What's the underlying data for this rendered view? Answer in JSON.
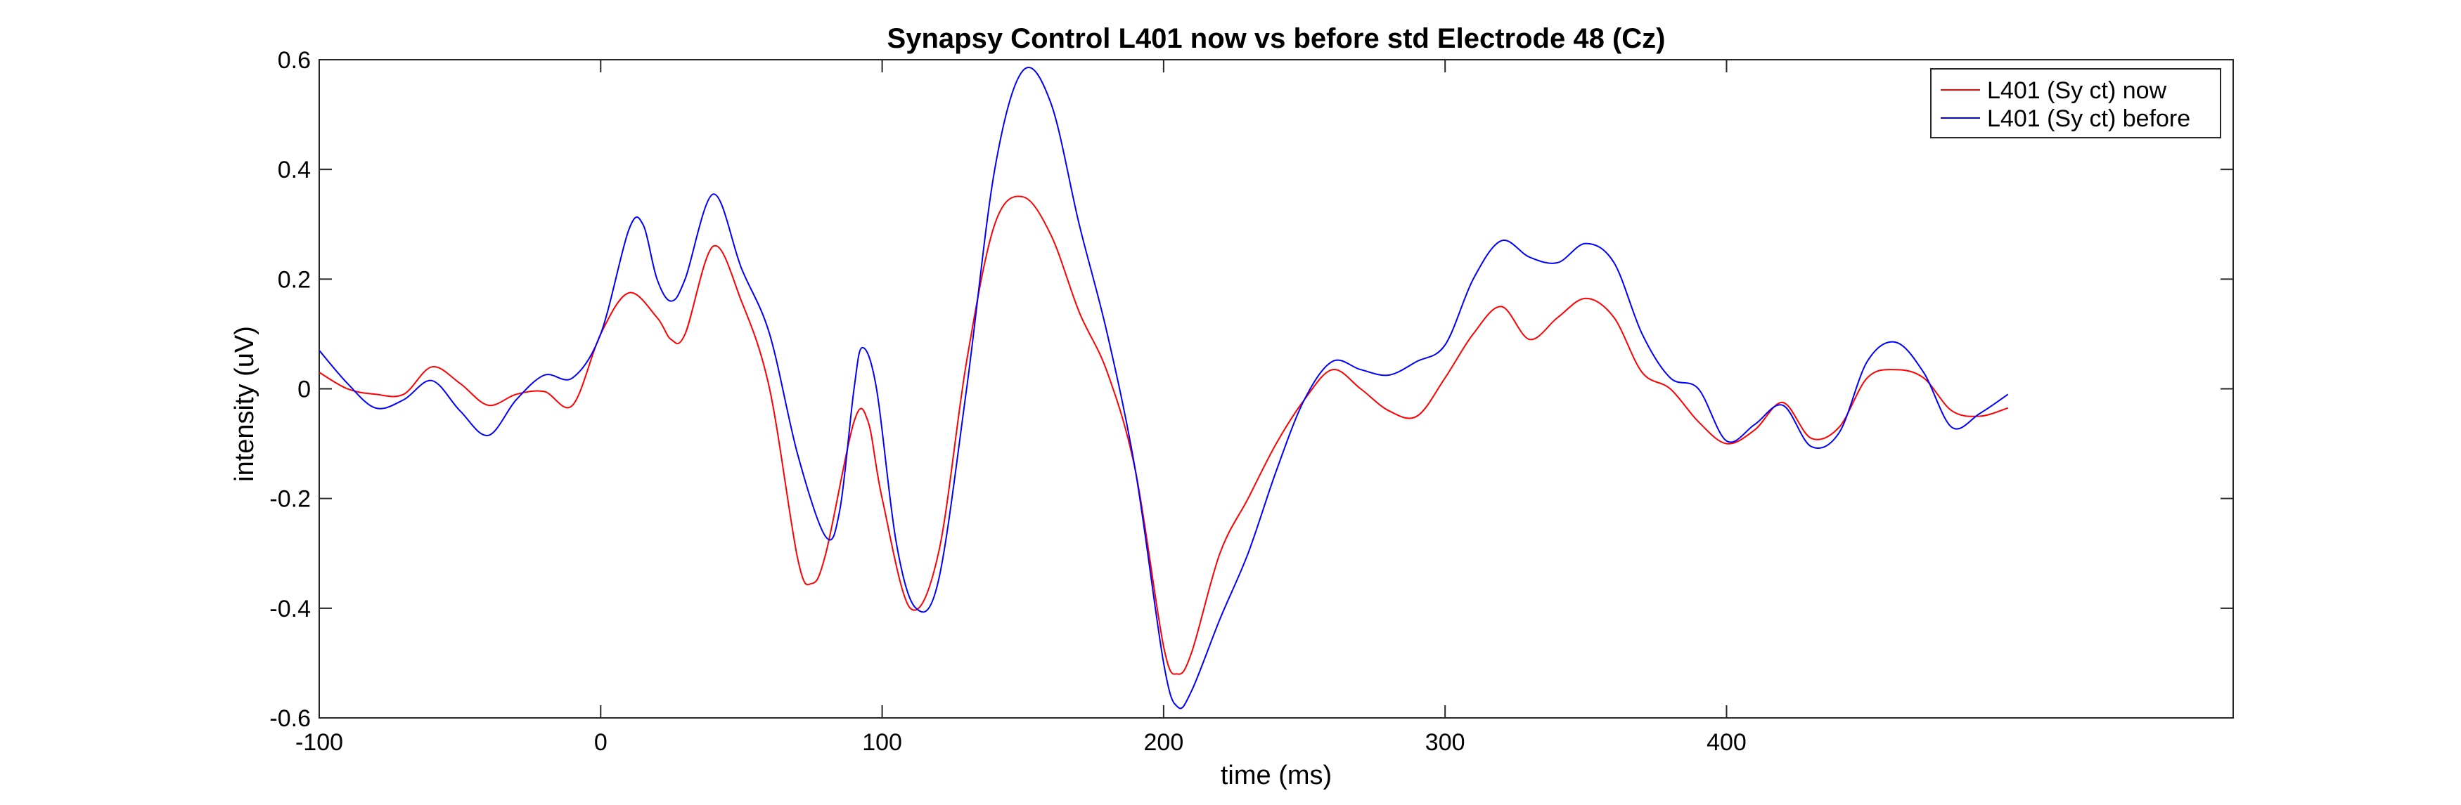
{
  "chart_data": {
    "type": "line",
    "title": "Synapsy Control L401 now vs before std Electrode 48 (Cz)",
    "xlabel": "time (ms)",
    "ylabel": "intensity (uV)",
    "xlim": [
      -100,
      580
    ],
    "ylim": [
      -0.6,
      0.6
    ],
    "xticks": [
      -100,
      0,
      100,
      200,
      300,
      400
    ],
    "xtick_labels": [
      "-100",
      "0",
      "100",
      "200",
      "300",
      "400"
    ],
    "yticks": [
      -0.6,
      -0.4,
      -0.2,
      0,
      0.2,
      0.4,
      0.6
    ],
    "ytick_labels": [
      "-0.6",
      "-0.4",
      "-0.2",
      "0",
      "0.2",
      "0.4",
      "0.6"
    ],
    "grid": false,
    "legend_position": "top-right",
    "series": [
      {
        "name": "L401 (Sy ct) now",
        "color": "#ff0000",
        "points": [
          [
            -100,
            0.03
          ],
          [
            -90,
            0.0
          ],
          [
            -80,
            -0.01
          ],
          [
            -70,
            -0.01
          ],
          [
            -60,
            0.04
          ],
          [
            -50,
            0.01
          ],
          [
            -40,
            -0.03
          ],
          [
            -30,
            -0.01
          ],
          [
            -20,
            -0.005
          ],
          [
            -10,
            -0.03
          ],
          [
            0,
            0.1
          ],
          [
            10,
            0.175
          ],
          [
            20,
            0.13
          ],
          [
            25,
            0.09
          ],
          [
            30,
            0.1
          ],
          [
            40,
            0.26
          ],
          [
            50,
            0.16
          ],
          [
            60,
            0.0
          ],
          [
            70,
            -0.31
          ],
          [
            75,
            -0.355
          ],
          [
            80,
            -0.3
          ],
          [
            90,
            -0.06
          ],
          [
            95,
            -0.06
          ],
          [
            100,
            -0.2
          ],
          [
            110,
            -0.4
          ],
          [
            120,
            -0.3
          ],
          [
            130,
            0.05
          ],
          [
            140,
            0.3
          ],
          [
            150,
            0.35
          ],
          [
            160,
            0.28
          ],
          [
            170,
            0.14
          ],
          [
            180,
            0.03
          ],
          [
            190,
            -0.15
          ],
          [
            200,
            -0.47
          ],
          [
            205,
            -0.52
          ],
          [
            210,
            -0.48
          ],
          [
            220,
            -0.3
          ],
          [
            230,
            -0.2
          ],
          [
            240,
            -0.1
          ],
          [
            250,
            -0.02
          ],
          [
            260,
            0.035
          ],
          [
            270,
            0.0
          ],
          [
            280,
            -0.04
          ],
          [
            290,
            -0.05
          ],
          [
            300,
            0.02
          ],
          [
            310,
            0.1
          ],
          [
            320,
            0.15
          ],
          [
            330,
            0.09
          ],
          [
            340,
            0.13
          ],
          [
            350,
            0.165
          ],
          [
            360,
            0.13
          ],
          [
            370,
            0.03
          ],
          [
            380,
            0.0
          ],
          [
            390,
            -0.06
          ],
          [
            400,
            -0.1
          ],
          [
            410,
            -0.075
          ],
          [
            420,
            -0.025
          ],
          [
            430,
            -0.09
          ],
          [
            440,
            -0.07
          ],
          [
            450,
            0.02
          ],
          [
            460,
            0.035
          ],
          [
            470,
            0.02
          ],
          [
            480,
            -0.04
          ],
          [
            490,
            -0.05
          ],
          [
            500,
            -0.035
          ]
        ]
      },
      {
        "name": "L401 (Sy ct) before",
        "color": "#0000ff",
        "points": [
          [
            -100,
            0.07
          ],
          [
            -90,
            0.01
          ],
          [
            -80,
            -0.035
          ],
          [
            -70,
            -0.02
          ],
          [
            -60,
            0.015
          ],
          [
            -50,
            -0.04
          ],
          [
            -40,
            -0.085
          ],
          [
            -30,
            -0.02
          ],
          [
            -20,
            0.025
          ],
          [
            -10,
            0.02
          ],
          [
            0,
            0.1
          ],
          [
            10,
            0.29
          ],
          [
            15,
            0.3
          ],
          [
            20,
            0.2
          ],
          [
            25,
            0.16
          ],
          [
            30,
            0.2
          ],
          [
            40,
            0.355
          ],
          [
            50,
            0.22
          ],
          [
            60,
            0.1
          ],
          [
            70,
            -0.12
          ],
          [
            80,
            -0.27
          ],
          [
            85,
            -0.22
          ],
          [
            90,
            0.0
          ],
          [
            93,
            0.075
          ],
          [
            98,
            0.0
          ],
          [
            105,
            -0.28
          ],
          [
            112,
            -0.4
          ],
          [
            120,
            -0.35
          ],
          [
            130,
            0.0
          ],
          [
            140,
            0.4
          ],
          [
            150,
            0.58
          ],
          [
            160,
            0.52
          ],
          [
            170,
            0.3
          ],
          [
            180,
            0.1
          ],
          [
            190,
            -0.15
          ],
          [
            200,
            -0.5
          ],
          [
            205,
            -0.58
          ],
          [
            210,
            -0.55
          ],
          [
            220,
            -0.42
          ],
          [
            230,
            -0.3
          ],
          [
            240,
            -0.15
          ],
          [
            250,
            -0.02
          ],
          [
            260,
            0.05
          ],
          [
            270,
            0.035
          ],
          [
            280,
            0.025
          ],
          [
            290,
            0.05
          ],
          [
            300,
            0.08
          ],
          [
            310,
            0.2
          ],
          [
            320,
            0.27
          ],
          [
            330,
            0.24
          ],
          [
            340,
            0.23
          ],
          [
            350,
            0.265
          ],
          [
            360,
            0.23
          ],
          [
            370,
            0.1
          ],
          [
            380,
            0.02
          ],
          [
            390,
            0.0
          ],
          [
            400,
            -0.095
          ],
          [
            410,
            -0.065
          ],
          [
            420,
            -0.03
          ],
          [
            430,
            -0.105
          ],
          [
            440,
            -0.08
          ],
          [
            450,
            0.05
          ],
          [
            460,
            0.085
          ],
          [
            470,
            0.03
          ],
          [
            480,
            -0.07
          ],
          [
            490,
            -0.045
          ],
          [
            500,
            -0.01
          ]
        ]
      }
    ]
  }
}
